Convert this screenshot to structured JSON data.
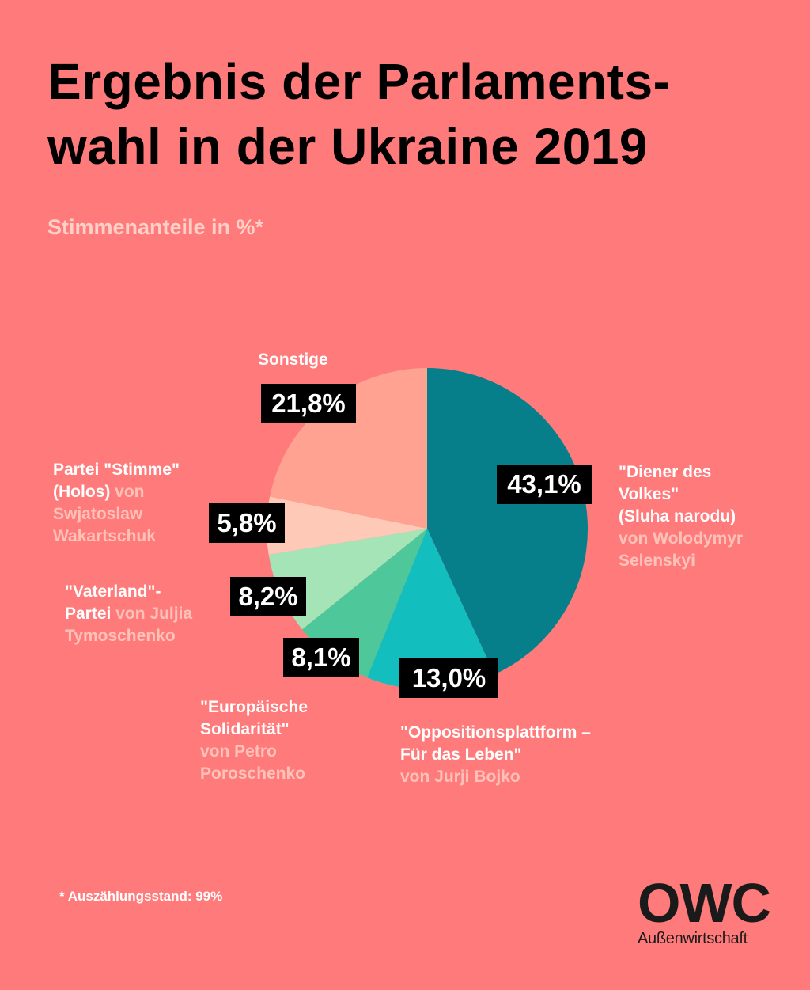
{
  "title_line1": "Ergebnis der Parlaments-",
  "title_line2": "wahl in der Ukraine 2019",
  "subtitle": "Stimmenanteile in %*",
  "footnote": "* Auszählungsstand: 99%",
  "logo": {
    "mark": "OWC",
    "sub": "Außenwirtschaft"
  },
  "chart_data": {
    "type": "pie",
    "title": "Ergebnis der Parlamentswahl in der Ukraine 2019",
    "subtitle": "Stimmenanteile in %*",
    "slices": [
      {
        "name": "\"Diener des Volkes\" (Sluha narodu)",
        "lead": "von Wolodymyr Selenskyi",
        "value": 43.1,
        "label": "43,1%",
        "color": "#077F8B"
      },
      {
        "name": "\"Oppositionsplattform – Für das Leben\"",
        "lead": "von Jurji Bojko",
        "value": 13.0,
        "label": "13,0%",
        "color": "#12BFBE"
      },
      {
        "name": "\"Europäische Solidarität\"",
        "lead": "von Petro Poroschenko",
        "value": 8.1,
        "label": "8,1%",
        "color": "#4EC89A"
      },
      {
        "name": "\"Vaterland\"-Partei",
        "lead": "von Juljia Tymoschenko",
        "value": 8.2,
        "label": "8,2%",
        "color": "#A4E4B6"
      },
      {
        "name": "Partei \"Stimme\" (Holos)",
        "lead": "von Swjatoslaw Wakartschuk",
        "value": 5.8,
        "label": "5,8%",
        "color": "#FFC9B7"
      },
      {
        "name": "Sonstige",
        "lead": "",
        "value": 21.8,
        "label": "21,8%",
        "color": "#FFA291"
      }
    ],
    "start": "12 o'clock",
    "direction": "clockwise"
  }
}
